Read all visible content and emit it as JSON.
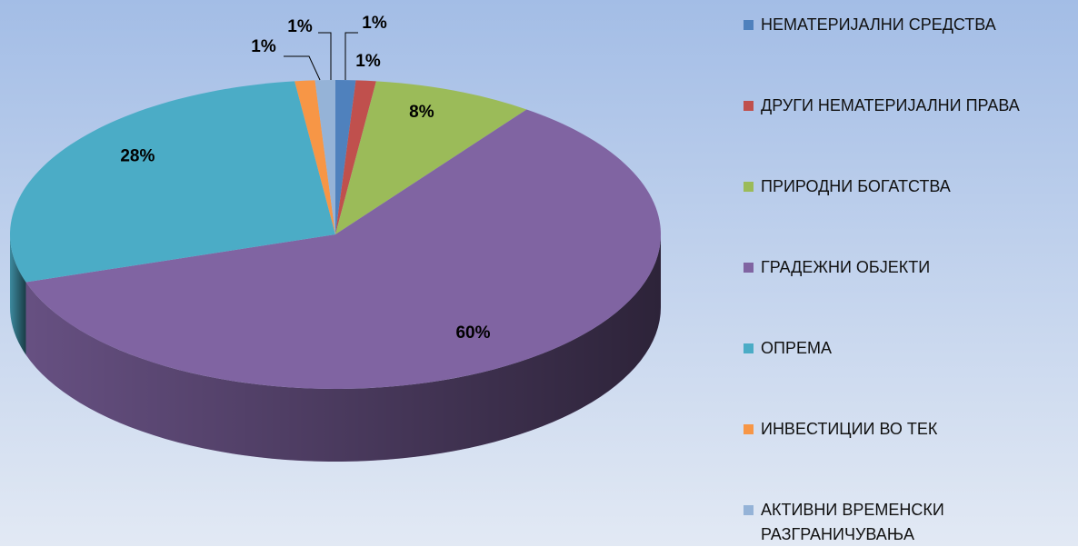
{
  "chart_data": {
    "type": "pie3d",
    "categories": [
      "НЕМАТЕРИЈАЛНИ СРЕДСТВА",
      "ДРУГИ НЕМАТЕРИЈАЛНИ ПРАВА",
      "ПРИРОДНИ БОГАТСТВА",
      "ГРАДЕЖНИ ОБЈЕКТИ",
      "ОПРЕМА",
      "ИНВЕСТИЦИИ ВО ТЕК",
      "АКТИВНИ ВРЕМЕНСКИ РАЗГРАНИЧУВАЊА"
    ],
    "values": [
      1,
      1,
      8,
      60,
      28,
      1,
      1
    ],
    "value_labels": [
      "1%",
      "1%",
      "8%",
      "60%",
      "28%",
      "1%",
      "1%"
    ],
    "colors": [
      "#4f81bd",
      "#c0504d",
      "#9bbb59",
      "#8064a2",
      "#4bacc6",
      "#f79646",
      "#95b3d7"
    ],
    "legend": "right"
  }
}
